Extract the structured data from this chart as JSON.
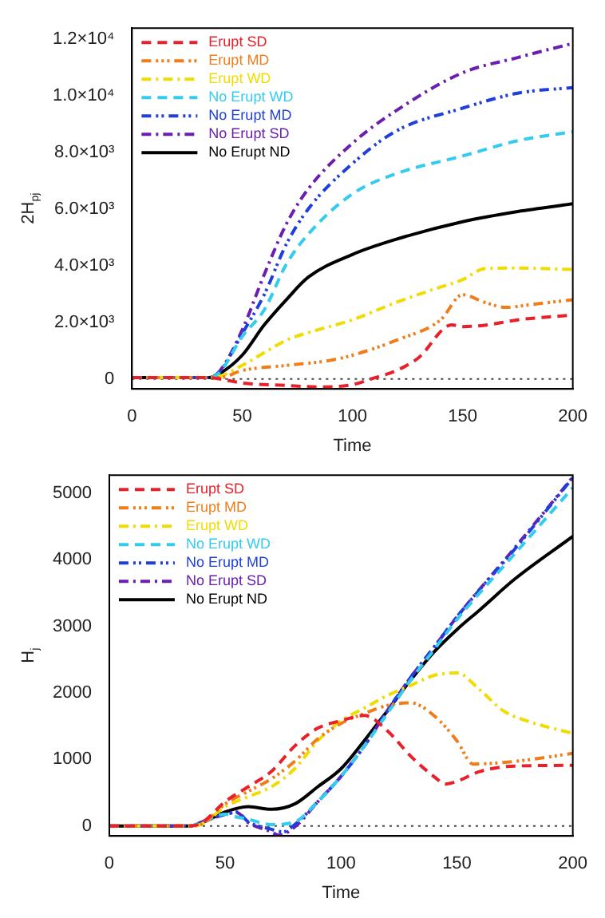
{
  "chart_data": [
    {
      "type": "line",
      "xlabel": "Time",
      "ylabel": "2H$_{pj}$",
      "xlim": [
        0,
        200
      ],
      "xticks": [
        0,
        50,
        100,
        150,
        200
      ],
      "ylim": [
        -350,
        12400
      ],
      "yticks": [
        0,
        {
          "value": 2000,
          "label": "2.0×10³"
        },
        {
          "value": 4000,
          "label": "4.0×10³"
        },
        {
          "value": 6000,
          "label": "6.0×10³"
        },
        {
          "value": 8000,
          "label": "8.0×10³"
        },
        {
          "value": 10000,
          "label": "1.0×10⁴"
        },
        {
          "value": 12000,
          "label": "1.2×10⁴"
        }
      ],
      "legend": "top left",
      "grid": false,
      "ref_lines": [
        {
          "axis": "y",
          "value": 0,
          "color": "#444444",
          "line_style": "dotted"
        }
      ],
      "series": [
        {
          "name": "Erupt SD",
          "color": "#e8202a",
          "line_style": "dashed",
          "x": [
            0,
            35,
            40,
            50,
            70,
            85,
            100,
            110,
            120,
            130,
            145,
            150,
            160,
            175,
            200
          ],
          "values": [
            50,
            50,
            0,
            -140,
            -230,
            -280,
            -200,
            40,
            300,
            750,
            1910,
            1850,
            1900,
            2090,
            2260
          ]
        },
        {
          "name": "Erupt MD",
          "color": "#f07d1a",
          "line_style": "dashdotdotdot",
          "x": [
            0,
            35,
            40,
            50,
            70,
            90,
            100,
            120,
            140,
            150,
            160,
            170,
            180,
            200
          ],
          "values": [
            50,
            50,
            50,
            300,
            480,
            660,
            840,
            1370,
            2090,
            2980,
            2710,
            2530,
            2620,
            2800
          ]
        },
        {
          "name": "Erupt WD",
          "color": "#f0dc00",
          "line_style": "dashdot",
          "x": [
            0,
            35,
            40,
            50,
            60,
            70,
            80,
            100,
            120,
            140,
            150,
            160,
            175,
            200
          ],
          "values": [
            50,
            50,
            100,
            480,
            930,
            1370,
            1640,
            2090,
            2710,
            3250,
            3510,
            3900,
            3920,
            3870
          ]
        },
        {
          "name": "No Erupt WD",
          "color": "#33ccee",
          "line_style": "dashed",
          "x": [
            0,
            35,
            40,
            50,
            60,
            70,
            80,
            100,
            120,
            150,
            175,
            200
          ],
          "values": [
            50,
            50,
            250,
            1500,
            2440,
            4050,
            5120,
            6540,
            7260,
            7880,
            8420,
            8740
          ]
        },
        {
          "name": "No Erupt MD",
          "color": "#1f3fdd",
          "line_style": "dashdotdot",
          "x": [
            0,
            35,
            40,
            50,
            60,
            70,
            80,
            100,
            120,
            150,
            175,
            200
          ],
          "values": [
            50,
            50,
            280,
            1600,
            2980,
            4760,
            6010,
            7610,
            8770,
            9570,
            10100,
            10300
          ]
        },
        {
          "name": "No Erupt SD",
          "color": "#6a1fb0",
          "line_style": "dashdot",
          "x": [
            0,
            35,
            40,
            50,
            60,
            70,
            80,
            100,
            120,
            150,
            175,
            200
          ],
          "values": [
            50,
            50,
            300,
            1730,
            3690,
            5470,
            6720,
            8330,
            9490,
            10820,
            11360,
            11860
          ]
        },
        {
          "name": "No Erupt ND",
          "color": "#000000",
          "line_style": "solid",
          "x": [
            0,
            35,
            40,
            50,
            60,
            70,
            80,
            100,
            120,
            150,
            175,
            200
          ],
          "values": [
            50,
            50,
            200,
            840,
            1910,
            2800,
            3600,
            4400,
            4940,
            5560,
            5920,
            6190
          ]
        }
      ]
    },
    {
      "type": "line",
      "xlabel": "Time",
      "ylabel": "H$_{j}$",
      "xlim": [
        0,
        200
      ],
      "xticks": [
        0,
        50,
        100,
        150,
        200
      ],
      "ylim": [
        -150,
        5270
      ],
      "yticks": [
        0,
        1000,
        2000,
        3000,
        4000,
        5000
      ],
      "legend": "top left",
      "grid": false,
      "ref_lines": [
        {
          "axis": "y",
          "value": 0,
          "color": "#444444",
          "line_style": "dotted"
        }
      ],
      "series": [
        {
          "name": "Erupt SD",
          "color": "#e8202a",
          "line_style": "dashed",
          "x": [
            0,
            35,
            40,
            50,
            60,
            70,
            80,
            90,
            100,
            110,
            120,
            130,
            140,
            145,
            150,
            160,
            175,
            200
          ],
          "values": [
            0,
            0,
            50,
            365,
            590,
            820,
            1200,
            1470,
            1580,
            1660,
            1430,
            1050,
            745,
            630,
            670,
            820,
            900,
            910
          ]
        },
        {
          "name": "Erupt MD",
          "color": "#f07d1a",
          "line_style": "dashdotdotdot",
          "x": [
            0,
            35,
            40,
            50,
            60,
            70,
            80,
            90,
            100,
            110,
            120,
            130,
            140,
            150,
            157,
            175,
            200
          ],
          "values": [
            0,
            0,
            30,
            330,
            520,
            710,
            970,
            1310,
            1540,
            1690,
            1810,
            1850,
            1660,
            1280,
            930,
            970,
            1090
          ]
        },
        {
          "name": "Erupt WD",
          "color": "#f0dc00",
          "line_style": "dashdot",
          "x": [
            0,
            35,
            40,
            50,
            60,
            70,
            80,
            90,
            100,
            110,
            120,
            130,
            140,
            150,
            160,
            170,
            180,
            200
          ],
          "values": [
            0,
            0,
            30,
            290,
            440,
            590,
            860,
            1280,
            1580,
            1770,
            1960,
            2110,
            2260,
            2300,
            2040,
            1730,
            1580,
            1390
          ]
        },
        {
          "name": "No Erupt WD",
          "color": "#33ccee",
          "line_style": "dashed",
          "x": [
            0,
            35,
            40,
            50,
            55,
            60,
            70,
            80,
            90,
            100,
            110,
            120,
            130,
            140,
            150,
            175,
            200
          ],
          "values": [
            0,
            0,
            60,
            175,
            135,
            100,
            20,
            60,
            365,
            745,
            1200,
            1690,
            2190,
            2640,
            3100,
            4090,
            5080
          ]
        },
        {
          "name": "No Erupt MD",
          "color": "#1f3fdd",
          "line_style": "dashdotdot",
          "x": [
            0,
            35,
            40,
            50,
            55,
            60,
            70,
            75,
            80,
            90,
            100,
            110,
            120,
            130,
            140,
            150,
            175,
            200
          ],
          "values": [
            0,
            0,
            60,
            175,
            210,
            60,
            -50,
            -90,
            20,
            365,
            745,
            1200,
            1730,
            2230,
            2680,
            3140,
            4160,
            5230
          ]
        },
        {
          "name": "No Erupt SD",
          "color": "#6a1fb0",
          "line_style": "dashdot",
          "x": [
            0,
            35,
            40,
            50,
            55,
            60,
            70,
            73,
            80,
            90,
            100,
            110,
            120,
            130,
            140,
            150,
            175,
            200
          ],
          "values": [
            0,
            0,
            60,
            175,
            200,
            50,
            -90,
            -140,
            -15,
            365,
            745,
            1200,
            1730,
            2230,
            2680,
            3140,
            4180,
            5240
          ]
        },
        {
          "name": "No Erupt ND",
          "color": "#000000",
          "line_style": "solid",
          "x": [
            0,
            35,
            40,
            50,
            60,
            70,
            80,
            90,
            100,
            110,
            120,
            130,
            140,
            150,
            160,
            175,
            200
          ],
          "values": [
            0,
            0,
            50,
            210,
            290,
            250,
            330,
            590,
            860,
            1280,
            1730,
            2190,
            2610,
            2950,
            3250,
            3710,
            4350
          ]
        }
      ]
    }
  ]
}
